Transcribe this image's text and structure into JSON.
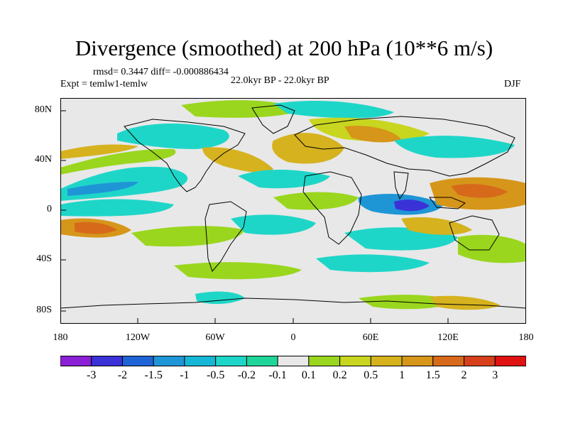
{
  "title": "Divergence (smoothed) at 200 hPa (10**6 m/s)",
  "stats": {
    "rmsd_diff": "rmsd= 0.3447 diff= -0.000886434",
    "expt": "Expt = temlw1-temlw",
    "period": "22.0kyr BP - 22.0kyr BP",
    "season": "DJF"
  },
  "axes": {
    "y_labels": [
      "80N",
      "40N",
      "0",
      "40S",
      "80S"
    ],
    "x_labels": [
      "180",
      "120W",
      "60W",
      "0",
      "60E",
      "120E",
      "180"
    ]
  },
  "colorbar": {
    "labels": [
      "-3",
      "-2",
      "-1.5",
      "-1",
      "-0.5",
      "-0.2",
      "-0.1",
      "0.1",
      "0.2",
      "0.5",
      "1",
      "1.5",
      "2",
      "3"
    ],
    "colors": [
      "#8a1fd6",
      "#3a32d6",
      "#1f64d6",
      "#1e96d6",
      "#15b6d6",
      "#1ed6c8",
      "#1fd69a",
      "#e8e8e8",
      "#9ad61e",
      "#c8d61f",
      "#d6b21e",
      "#d6961a",
      "#d66a1a",
      "#d6401a",
      "#e01212"
    ]
  }
}
